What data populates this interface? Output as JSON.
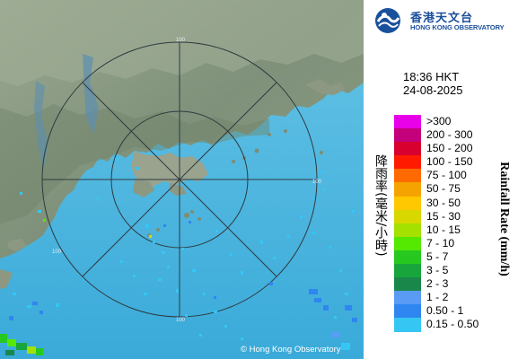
{
  "header": {
    "org_name_zh": "香港天文台",
    "org_name_en": "HONG KONG OBSERVATORY"
  },
  "timestamp": {
    "time": "18:36 HKT",
    "date": "24-08-2025"
  },
  "legend": {
    "title_en": "Rainfall Rate (mm/h)",
    "title_zh": "降雨率(毫米/小時)",
    "items": [
      {
        "label": ">300",
        "color": "#e800e8"
      },
      {
        "label": "200 - 300",
        "color": "#c4007a"
      },
      {
        "label": "150 - 200",
        "color": "#d8002e"
      },
      {
        "label": "100 - 150",
        "color": "#ff1a00"
      },
      {
        "label": "75 - 100",
        "color": "#ff6a00"
      },
      {
        "label": "50 - 75",
        "color": "#f5a300"
      },
      {
        "label": "30 - 50",
        "color": "#ffc800"
      },
      {
        "label": "15 - 30",
        "color": "#d8d800"
      },
      {
        "label": "10 - 15",
        "color": "#a4e000"
      },
      {
        "label": "7 - 10",
        "color": "#55e800"
      },
      {
        "label": "5 - 7",
        "color": "#27c81f"
      },
      {
        "label": "3 - 5",
        "color": "#18a63c"
      },
      {
        "label": "2 - 3",
        "color": "#19874a"
      },
      {
        "label": "1 - 2",
        "color": "#5a9bf5"
      },
      {
        "label": "0.50 - 1",
        "color": "#2f86f0"
      },
      {
        "label": "0.15 - 0.50",
        "color": "#36c6f4"
      }
    ]
  },
  "map": {
    "range_ring_labels": [
      "100",
      "100",
      "100",
      "100"
    ],
    "copyright": "© Hong Kong Observatory",
    "colors": {
      "sea": "#4fb6df",
      "land": "#8a9a80",
      "ring": "#3a4a50"
    }
  }
}
